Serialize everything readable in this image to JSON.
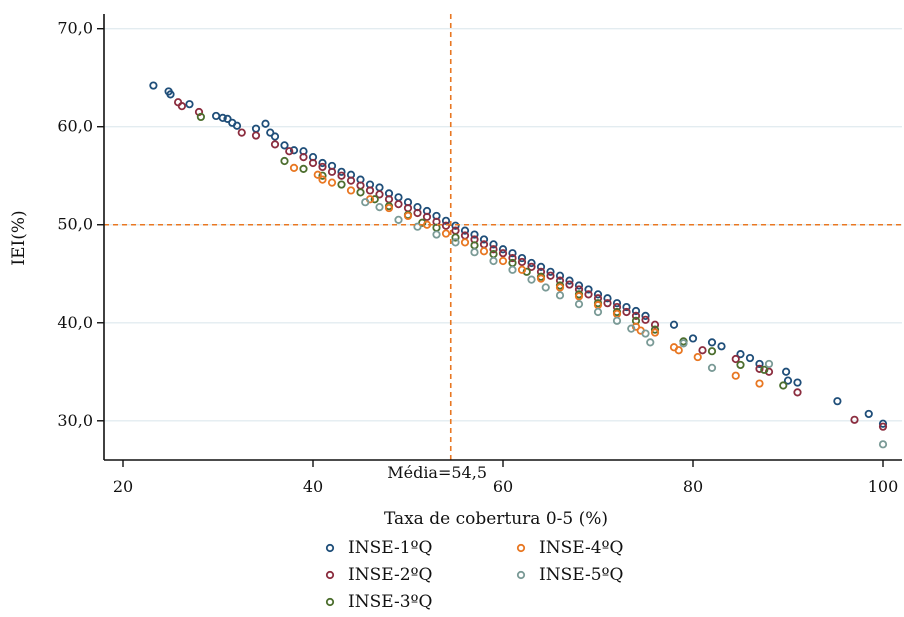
{
  "chart_data": {
    "type": "scatter",
    "xlabel": "Taxa de cobertura 0-5 (%)",
    "ylabel": "IEI(%)",
    "xlim": [
      18,
      102
    ],
    "ylim": [
      26,
      71.5
    ],
    "x_ticks": [
      {
        "value": 20,
        "label": "20"
      },
      {
        "value": 40,
        "label": "40"
      },
      {
        "value": 60,
        "label": "60"
      },
      {
        "value": 80,
        "label": "80"
      },
      {
        "value": 100,
        "label": "100"
      }
    ],
    "y_ticks": [
      {
        "value": 30,
        "label": "30,0"
      },
      {
        "value": 40,
        "label": "40,0"
      },
      {
        "value": 50,
        "label": "50,0"
      },
      {
        "value": 60,
        "label": "60,0"
      },
      {
        "value": 70,
        "label": "70,0"
      }
    ],
    "grid": "horizontal",
    "legend_position": "bottom",
    "reference_lines": {
      "vertical_x": 54.5,
      "horizontal_y": 50,
      "color": "#e87722",
      "annotation": "Média=54,5"
    },
    "series": [
      {
        "name": "INSE-1ºQ",
        "color": "#1f4e79",
        "points": [
          [
            23.2,
            64.2
          ],
          [
            24.8,
            63.6
          ],
          [
            25,
            63.3
          ],
          [
            27,
            62.3
          ],
          [
            29.8,
            61.1
          ],
          [
            30.5,
            60.9
          ],
          [
            31,
            60.8
          ],
          [
            31.5,
            60.4
          ],
          [
            32,
            60.1
          ],
          [
            34,
            59.8
          ],
          [
            35,
            60.3
          ],
          [
            35.5,
            59.4
          ],
          [
            36,
            59.0
          ],
          [
            37,
            58.1
          ],
          [
            38,
            57.6
          ],
          [
            39,
            57.5
          ],
          [
            40,
            56.9
          ],
          [
            41,
            56.3
          ],
          [
            42,
            56.0
          ],
          [
            43,
            55.4
          ],
          [
            44,
            55.1
          ],
          [
            45,
            54.6
          ],
          [
            46,
            54.1
          ],
          [
            47,
            53.8
          ],
          [
            48,
            53.2
          ],
          [
            49,
            52.8
          ],
          [
            50,
            52.3
          ],
          [
            51,
            51.8
          ],
          [
            52,
            51.4
          ],
          [
            53,
            50.9
          ],
          [
            54,
            50.4
          ],
          [
            55,
            49.9
          ],
          [
            56,
            49.4
          ],
          [
            57,
            49.0
          ],
          [
            58,
            48.5
          ],
          [
            59,
            48.0
          ],
          [
            60,
            47.5
          ],
          [
            61,
            47.1
          ],
          [
            62,
            46.6
          ],
          [
            63,
            46.1
          ],
          [
            64,
            45.7
          ],
          [
            65,
            45.2
          ],
          [
            66,
            44.8
          ],
          [
            67,
            44.3
          ],
          [
            68,
            43.8
          ],
          [
            69,
            43.4
          ],
          [
            70,
            42.9
          ],
          [
            71,
            42.5
          ],
          [
            72,
            42.0
          ],
          [
            73,
            41.6
          ],
          [
            74,
            41.2
          ],
          [
            75,
            40.7
          ],
          [
            78,
            39.8
          ],
          [
            80,
            38.4
          ],
          [
            82,
            38.0
          ],
          [
            83,
            37.6
          ],
          [
            85,
            36.8
          ],
          [
            86,
            36.4
          ],
          [
            87,
            35.8
          ],
          [
            89.8,
            35.0
          ],
          [
            90,
            34.1
          ],
          [
            91,
            33.9
          ],
          [
            95.2,
            32.0
          ],
          [
            98.5,
            30.7
          ],
          [
            100,
            29.7
          ]
        ]
      },
      {
        "name": "INSE-2ºQ",
        "color": "#8b2d3f",
        "points": [
          [
            25.8,
            62.5
          ],
          [
            26.2,
            62.1
          ],
          [
            28,
            61.5
          ],
          [
            32.5,
            59.4
          ],
          [
            34,
            59.1
          ],
          [
            36,
            58.2
          ],
          [
            37.5,
            57.5
          ],
          [
            39,
            56.9
          ],
          [
            40,
            56.3
          ],
          [
            41,
            55.9
          ],
          [
            42,
            55.4
          ],
          [
            43,
            55.0
          ],
          [
            44,
            54.5
          ],
          [
            45,
            54.0
          ],
          [
            46,
            53.5
          ],
          [
            47,
            53.1
          ],
          [
            48,
            52.6
          ],
          [
            49,
            52.1
          ],
          [
            50,
            51.7
          ],
          [
            51,
            51.2
          ],
          [
            52,
            50.8
          ],
          [
            53,
            50.3
          ],
          [
            54,
            49.9
          ],
          [
            55,
            49.4
          ],
          [
            56,
            48.9
          ],
          [
            57,
            48.5
          ],
          [
            58,
            48.0
          ],
          [
            59,
            47.5
          ],
          [
            60,
            47.1
          ],
          [
            61,
            46.6
          ],
          [
            62,
            46.2
          ],
          [
            63,
            45.7
          ],
          [
            64,
            45.2
          ],
          [
            65,
            44.8
          ],
          [
            66,
            44.3
          ],
          [
            67,
            43.9
          ],
          [
            68,
            43.4
          ],
          [
            69,
            42.9
          ],
          [
            70,
            42.5
          ],
          [
            71,
            42.0
          ],
          [
            72,
            41.6
          ],
          [
            73,
            41.1
          ],
          [
            74,
            40.7
          ],
          [
            75,
            40.3
          ],
          [
            76,
            39.8
          ],
          [
            81,
            37.2
          ],
          [
            84.5,
            36.3
          ],
          [
            87,
            35.3
          ],
          [
            88,
            35.0
          ],
          [
            91,
            32.9
          ],
          [
            97,
            30.1
          ],
          [
            100,
            29.4
          ]
        ]
      },
      {
        "name": "INSE-3ºQ",
        "color": "#4c6e2e",
        "points": [
          [
            28.2,
            61.0
          ],
          [
            37,
            56.5
          ],
          [
            39,
            55.7
          ],
          [
            41,
            55.0
          ],
          [
            43,
            54.1
          ],
          [
            45,
            53.3
          ],
          [
            46.5,
            52.6
          ],
          [
            48,
            51.9
          ],
          [
            50,
            51.0
          ],
          [
            51.5,
            50.2
          ],
          [
            53,
            49.7
          ],
          [
            55,
            48.7
          ],
          [
            57,
            47.9
          ],
          [
            59,
            47.0
          ],
          [
            61,
            46.1
          ],
          [
            62.5,
            45.2
          ],
          [
            64,
            44.7
          ],
          [
            66,
            43.8
          ],
          [
            68,
            42.9
          ],
          [
            70,
            42.0
          ],
          [
            72,
            41.1
          ],
          [
            74,
            40.2
          ],
          [
            76,
            39.3
          ],
          [
            79,
            38.1
          ],
          [
            82,
            37.1
          ],
          [
            85,
            35.7
          ],
          [
            87.5,
            35.2
          ],
          [
            89.5,
            33.6
          ]
        ]
      },
      {
        "name": "INSE-4ºQ",
        "color": "#e87722",
        "points": [
          [
            38,
            55.8
          ],
          [
            40.5,
            55.1
          ],
          [
            41,
            54.6
          ],
          [
            42,
            54.3
          ],
          [
            44,
            53.5
          ],
          [
            46,
            52.6
          ],
          [
            48,
            51.7
          ],
          [
            50,
            50.9
          ],
          [
            52,
            50.0
          ],
          [
            54,
            49.1
          ],
          [
            56,
            48.2
          ],
          [
            58,
            47.3
          ],
          [
            60,
            46.3
          ],
          [
            62,
            45.4
          ],
          [
            64,
            44.5
          ],
          [
            66,
            43.6
          ],
          [
            68,
            42.7
          ],
          [
            70,
            41.8
          ],
          [
            72,
            40.9
          ],
          [
            74,
            39.6
          ],
          [
            74.5,
            39.2
          ],
          [
            76,
            39.0
          ],
          [
            78,
            37.5
          ],
          [
            78.5,
            37.2
          ],
          [
            80.5,
            36.5
          ],
          [
            84.5,
            34.6
          ],
          [
            87,
            33.8
          ]
        ]
      },
      {
        "name": "INSE-5ºQ",
        "color": "#7a9a96",
        "points": [
          [
            45.5,
            52.3
          ],
          [
            47,
            51.8
          ],
          [
            49,
            50.5
          ],
          [
            51,
            49.8
          ],
          [
            53,
            49.0
          ],
          [
            55,
            48.2
          ],
          [
            57,
            47.2
          ],
          [
            59,
            46.3
          ],
          [
            61,
            45.4
          ],
          [
            63,
            44.4
          ],
          [
            64.5,
            43.6
          ],
          [
            66,
            42.8
          ],
          [
            68,
            41.9
          ],
          [
            70,
            41.1
          ],
          [
            72,
            40.2
          ],
          [
            73.5,
            39.4
          ],
          [
            75,
            38.9
          ],
          [
            75.5,
            38.0
          ],
          [
            79,
            37.9
          ],
          [
            82,
            35.4
          ],
          [
            88,
            35.8
          ],
          [
            100,
            27.6
          ]
        ]
      }
    ]
  }
}
